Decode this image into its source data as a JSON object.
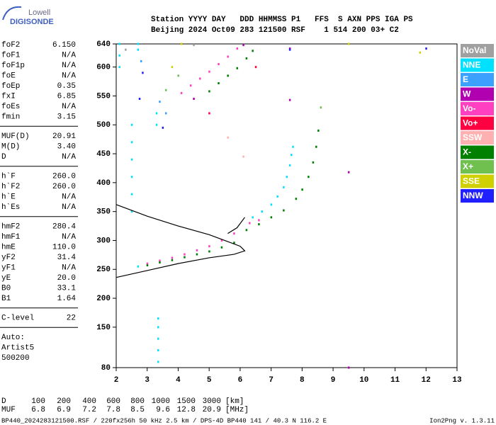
{
  "logo": {
    "top": "Lowell",
    "bottom": "DIGISONDE"
  },
  "header": {
    "line1": "Station YYYY DAY   DDD HHMMSS P1   FFS  S AXN PPS IGA PS",
    "line2": "Beijing 2024 Oct09 283 121500 RSF    1 514 200 03+ C2"
  },
  "parameters": [
    [
      [
        "foF2",
        "6.150"
      ],
      [
        "foF1",
        "N/A"
      ],
      [
        "foF1p",
        "N/A"
      ],
      [
        "foE",
        "N/A"
      ],
      [
        "foEp",
        "0.35"
      ],
      [
        "fxI",
        "6.85"
      ],
      [
        "foEs",
        "N/A"
      ],
      [
        "fmin",
        "3.15"
      ]
    ],
    [
      [
        "MUF(D)",
        "20.91"
      ],
      [
        "M(D)",
        "3.40"
      ],
      [
        "D",
        "N/A"
      ]
    ],
    [
      [
        "h`F",
        "260.0"
      ],
      [
        "h`F2",
        "260.0"
      ],
      [
        "h`E",
        "N/A"
      ],
      [
        "h`Es",
        "N/A"
      ]
    ],
    [
      [
        "hmF2",
        "280.4"
      ],
      [
        "hmF1",
        "N/A"
      ],
      [
        "hmE",
        "110.0"
      ],
      [
        "yF2",
        "31.4"
      ],
      [
        "yF1",
        "N/A"
      ],
      [
        "yE",
        "20.0"
      ],
      [
        "B0",
        "33.1"
      ],
      [
        "B1",
        "1.64"
      ]
    ],
    [
      [
        "C-level",
        "22"
      ]
    ]
  ],
  "auto_lines": [
    "Auto:",
    "Artist5",
    "500200"
  ],
  "bottom_table": {
    "rows": [
      [
        "D",
        "100",
        "200",
        "400",
        "600",
        "800",
        "1000",
        "1500",
        "3000",
        "[km]"
      ],
      [
        "MUF",
        "6.8",
        "6.9",
        "7.2",
        "7.8",
        "8.5",
        "9.6",
        "12.8",
        "20.9",
        "[MHz]"
      ]
    ]
  },
  "footer": {
    "left": "BP440_2024283121500.RSF / 220fx256h 50 kHz 2.5 km / DPS-4D BP440 141 / 40.3 N 116.2 E",
    "right": "Ion2Png v. 1.3.11"
  },
  "chart_data": {
    "type": "scatter",
    "xlim": [
      2,
      13
    ],
    "xticks": [
      2,
      3,
      4,
      5,
      6,
      7,
      8,
      9,
      10,
      11,
      12,
      13
    ],
    "ylim": [
      80,
      640
    ],
    "yticks": [
      80,
      150,
      200,
      250,
      300,
      350,
      400,
      450,
      500,
      550,
      600,
      640
    ],
    "series": [
      {
        "name": "NoVal",
        "color": "#a0a0a0",
        "x": [
          2.3,
          4.5
        ],
        "values": [
          630,
          638
        ]
      },
      {
        "name": "NNE",
        "color": "#00e0ff",
        "x": [
          6.4,
          6.7,
          7.0,
          7.2,
          7.4,
          7.5,
          7.6,
          7.65,
          7.7,
          2.5,
          2.5,
          2.5,
          2.5,
          2.5,
          2.5,
          3.35,
          3.35,
          3.35,
          3.35,
          3.35,
          2.1,
          2.1,
          2.1,
          2.7,
          2.7,
          3.3,
          3.3,
          2.7
        ],
        "values": [
          340,
          350,
          362,
          376,
          392,
          410,
          430,
          448,
          462,
          350,
          380,
          410,
          440,
          470,
          500,
          90,
          110,
          130,
          150,
          165,
          600,
          620,
          640,
          630,
          640,
          500,
          520,
          255
        ]
      },
      {
        "name": "E",
        "color": "#3ca0ff",
        "x": [
          3.4,
          3.6,
          2.8
        ],
        "values": [
          540,
          520,
          610
        ]
      },
      {
        "name": "W",
        "color": "#b000b0",
        "x": [
          9.5,
          4.5,
          7.6,
          9.5,
          6.1,
          7.6
        ],
        "values": [
          418,
          545,
          543,
          80,
          638,
          632
        ]
      },
      {
        "name": "Vo-",
        "color": "#ff40c0",
        "x": [
          3.0,
          3.4,
          3.8,
          4.2,
          4.6,
          5.0,
          5.4,
          5.8,
          6.3,
          6.6,
          4.1,
          4.4,
          4.7,
          5.0,
          5.3,
          5.6,
          5.9
        ],
        "values": [
          260,
          265,
          270,
          276,
          283,
          290,
          300,
          312,
          330,
          335,
          555,
          568,
          580,
          592,
          605,
          618,
          632
        ]
      },
      {
        "name": "Vo+",
        "color": "#ff0040",
        "x": [
          5.0,
          6.5
        ],
        "values": [
          520,
          600
        ]
      },
      {
        "name": "SSW",
        "color": "#ffb0b0",
        "x": [
          6.1,
          5.6
        ],
        "values": [
          445,
          478
        ]
      },
      {
        "name": "X-",
        "color": "#008000",
        "x": [
          3.0,
          3.4,
          3.8,
          4.2,
          4.6,
          5.0,
          5.4,
          5.8,
          6.2,
          6.6,
          7.0,
          7.4,
          7.8,
          8.0,
          8.2,
          8.35,
          8.45,
          8.52,
          5.0,
          5.3,
          5.6,
          5.9,
          6.2,
          6.4
        ],
        "values": [
          257,
          262,
          266,
          271,
          276,
          281,
          288,
          296,
          318,
          328,
          340,
          352,
          372,
          388,
          410,
          435,
          462,
          490,
          558,
          572,
          585,
          598,
          615,
          628
        ]
      },
      {
        "name": "X+",
        "color": "#70c050",
        "x": [
          8.6,
          3.6,
          4.0
        ],
        "values": [
          530,
          560,
          585
        ]
      },
      {
        "name": "SSE",
        "color": "#d0d000",
        "x": [
          3.8,
          4.1,
          11.8,
          9.5
        ],
        "values": [
          600,
          640,
          625,
          640
        ]
      },
      {
        "name": "NNW",
        "color": "#2020ff",
        "x": [
          2.85,
          2.75,
          3.5,
          7.6,
          12.0
        ],
        "values": [
          590,
          545,
          495,
          630,
          632
        ]
      }
    ],
    "profile": {
      "color": "#000000",
      "x": [
        2,
        3,
        4,
        5,
        5.8,
        6.15,
        6.0,
        5.5,
        5.0,
        4.0,
        3.0,
        2.0,
        null,
        5.6,
        5.9,
        6.15
      ],
      "y": [
        236,
        248,
        260,
        270,
        276,
        282,
        290,
        300,
        310,
        325,
        342,
        362,
        null,
        312,
        322,
        340
      ]
    }
  }
}
